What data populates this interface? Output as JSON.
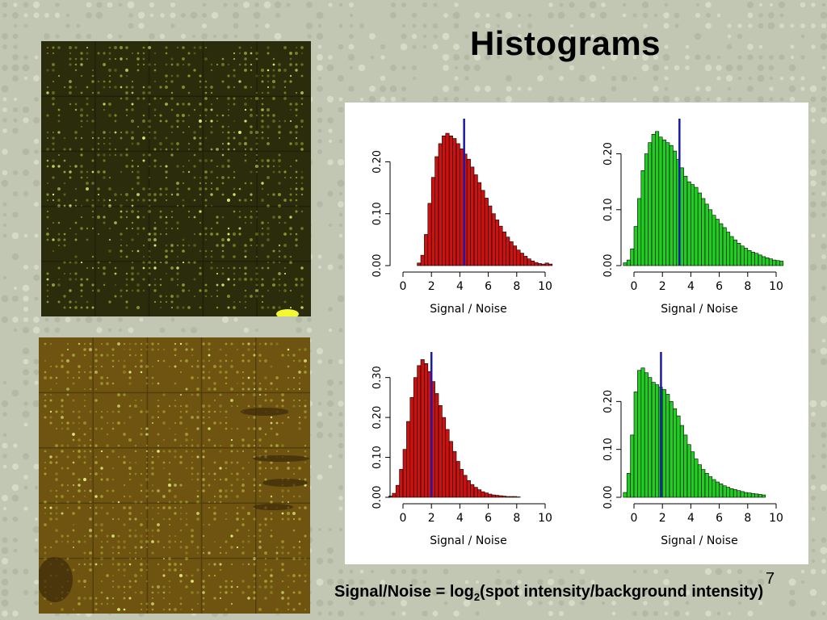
{
  "slide": {
    "title": "Histograms",
    "page_number": "7",
    "caption_prefix": "Signal/Noise = log",
    "caption_sub": "2",
    "caption_suffix": "(spot intensity/background intensity)"
  },
  "colors": {
    "red_bar": "#cc1111",
    "green_bar": "#22cc22",
    "marker_line": "#1a1aa8",
    "bar_outline": "#000000"
  },
  "chart_data": [
    {
      "type": "bar",
      "position": "top-left",
      "title": "",
      "xlabel": "Signal / Noise",
      "ylabel": "",
      "color": "red",
      "x_ticks": [
        "0",
        "2",
        "4",
        "6",
        "8",
        "10"
      ],
      "y_ticks": [
        "0.00",
        "0.10",
        "0.20"
      ],
      "xlim": [
        0,
        10.5
      ],
      "ylim": [
        0,
        0.28
      ],
      "bin_start": 1.0,
      "bin_width": 0.25,
      "values": [
        0.005,
        0.02,
        0.06,
        0.12,
        0.17,
        0.21,
        0.235,
        0.25,
        0.255,
        0.25,
        0.245,
        0.235,
        0.225,
        0.215,
        0.205,
        0.19,
        0.175,
        0.16,
        0.145,
        0.13,
        0.115,
        0.1,
        0.088,
        0.076,
        0.065,
        0.055,
        0.046,
        0.038,
        0.03,
        0.024,
        0.018,
        0.013,
        0.009,
        0.006,
        0.004,
        0.003,
        0.005,
        0.003
      ],
      "marker_x": 4.3
    },
    {
      "type": "bar",
      "position": "top-right",
      "title": "",
      "xlabel": "Signal / Noise",
      "ylabel": "",
      "color": "green",
      "x_ticks": [
        "0",
        "2",
        "4",
        "6",
        "8",
        "10"
      ],
      "y_ticks": [
        "0.00",
        "0.10",
        "0.20"
      ],
      "xlim": [
        -0.5,
        10.5
      ],
      "ylim": [
        0,
        0.26
      ],
      "bin_start": -0.75,
      "bin_width": 0.25,
      "values": [
        0.005,
        0.01,
        0.03,
        0.07,
        0.12,
        0.17,
        0.2,
        0.22,
        0.235,
        0.24,
        0.23,
        0.225,
        0.22,
        0.215,
        0.205,
        0.19,
        0.175,
        0.16,
        0.15,
        0.145,
        0.14,
        0.13,
        0.12,
        0.11,
        0.1,
        0.09,
        0.083,
        0.075,
        0.068,
        0.06,
        0.052,
        0.046,
        0.04,
        0.035,
        0.031,
        0.027,
        0.024,
        0.022,
        0.019,
        0.016,
        0.014,
        0.012,
        0.01,
        0.009,
        0.008
      ],
      "marker_x": 3.2
    },
    {
      "type": "bar",
      "position": "bottom-left",
      "title": "",
      "xlabel": "Signal / Noise",
      "ylabel": "",
      "color": "red",
      "x_ticks": [
        "0",
        "2",
        "4",
        "6",
        "8",
        "10"
      ],
      "y_ticks": [
        "0.00",
        "0.10",
        "0.20",
        "0.30"
      ],
      "xlim": [
        -0.5,
        10.5
      ],
      "ylim": [
        0,
        0.36
      ],
      "bin_start": -1.0,
      "bin_width": 0.25,
      "values": [
        0.003,
        0.01,
        0.03,
        0.07,
        0.12,
        0.19,
        0.25,
        0.3,
        0.33,
        0.345,
        0.335,
        0.315,
        0.29,
        0.26,
        0.23,
        0.2,
        0.17,
        0.14,
        0.115,
        0.09,
        0.07,
        0.055,
        0.042,
        0.032,
        0.025,
        0.019,
        0.014,
        0.011,
        0.008,
        0.006,
        0.005,
        0.004,
        0.003,
        0.002,
        0.002,
        0.002,
        0.001
      ],
      "marker_x": 2.0
    },
    {
      "type": "bar",
      "position": "bottom-right",
      "title": "",
      "xlabel": "Signal / Noise",
      "ylabel": "",
      "color": "green",
      "x_ticks": [
        "0",
        "2",
        "4",
        "6",
        "8",
        "10"
      ],
      "y_ticks": [
        "0.00",
        "0.10",
        "0.20"
      ],
      "xlim": [
        -0.5,
        10.5
      ],
      "ylim": [
        0,
        0.3
      ],
      "bin_start": -0.75,
      "bin_width": 0.25,
      "values": [
        0.01,
        0.05,
        0.13,
        0.22,
        0.265,
        0.27,
        0.26,
        0.25,
        0.24,
        0.235,
        0.23,
        0.225,
        0.215,
        0.2,
        0.185,
        0.17,
        0.15,
        0.13,
        0.11,
        0.095,
        0.08,
        0.068,
        0.058,
        0.05,
        0.043,
        0.037,
        0.032,
        0.028,
        0.024,
        0.021,
        0.018,
        0.016,
        0.014,
        0.012,
        0.01,
        0.009,
        0.008,
        0.007,
        0.006,
        0.005
      ],
      "marker_x": 1.9
    }
  ]
}
